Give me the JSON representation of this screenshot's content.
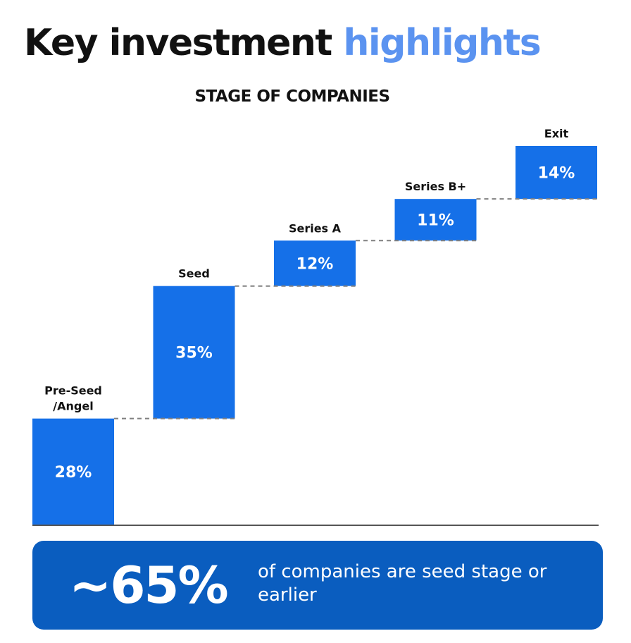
{
  "header": {
    "title_main": "Key investment",
    "title_accent": "highlights"
  },
  "chart_data": {
    "type": "bar",
    "subtype": "waterfall",
    "title": "STAGE OF COMPANIES",
    "categories": [
      "Pre-Seed /Angel",
      "Seed",
      "Series A",
      "Series B+",
      "Exit"
    ],
    "label_lines": [
      [
        "Pre-Seed",
        "/Angel"
      ],
      [
        "Seed"
      ],
      [
        "Series A"
      ],
      [
        "Series B+"
      ],
      [
        "Exit"
      ]
    ],
    "values": [
      28,
      35,
      12,
      11,
      14
    ],
    "value_labels": [
      "28%",
      "35%",
      "12%",
      "11%",
      "14%"
    ],
    "unit": "%",
    "cumulative_range": [
      0,
      100
    ],
    "connectors": "dashed",
    "bar_color": "#1570e8"
  },
  "callout": {
    "value": "~65%",
    "text": "of companies are seed stage or earlier",
    "background": "#0a5dbf"
  },
  "colors": {
    "accent": "#5b93f0",
    "bar": "#1570e8",
    "text": "#111111"
  }
}
